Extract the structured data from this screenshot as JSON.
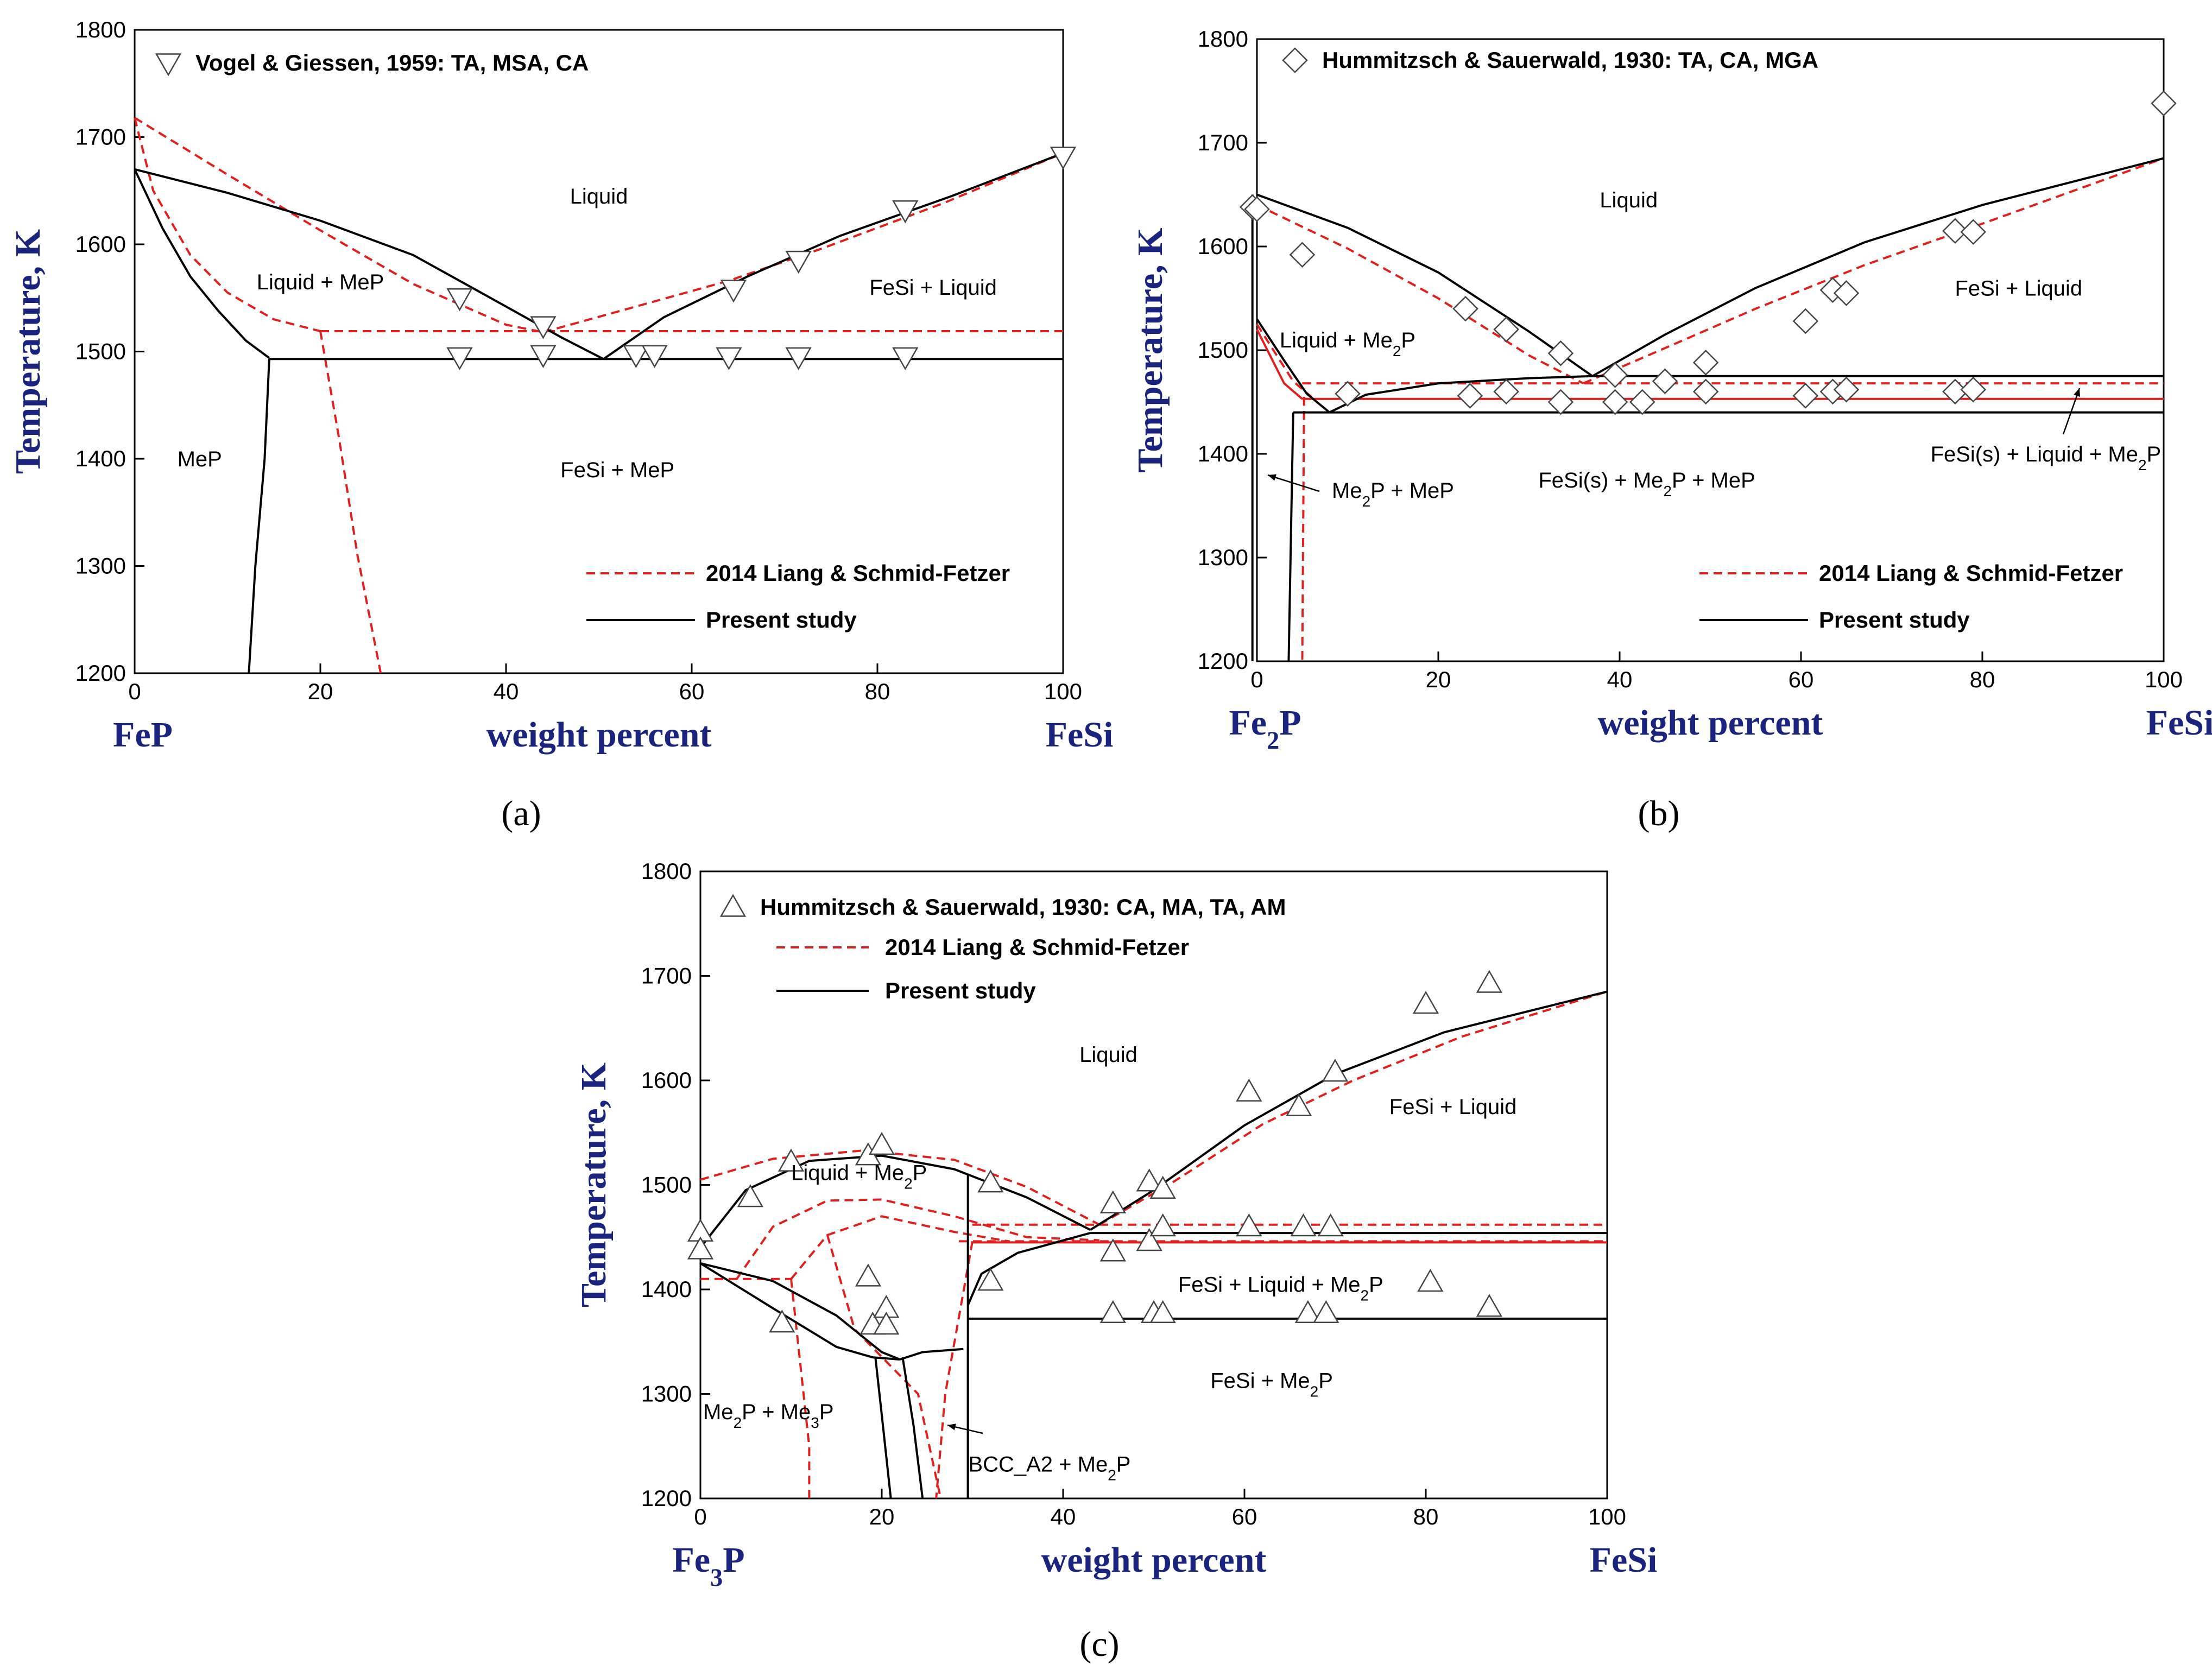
{
  "chart_data": [
    {
      "type": "scatter",
      "panel": "(a)",
      "xlabel": "weight percent",
      "ylabel": "Temperature, K",
      "xlim": [
        0,
        100
      ],
      "ylim": [
        1200,
        1800
      ],
      "xticks": [
        0,
        20,
        40,
        60,
        80,
        100
      ],
      "yticks": [
        1200,
        1300,
        1400,
        1500,
        1600,
        1700,
        1800
      ],
      "left_component": "FeP",
      "right_component": "FeSi",
      "legend": {
        "data": "Vogel & Giessen, 1959: TA, MSA, CA",
        "dashed": "2014 Liang & Schmid-Fetzer",
        "solid": "Present study"
      },
      "regions": [
        {
          "text": "Liquid",
          "x": 50,
          "y": 1645
        },
        {
          "text": "Liquid + MeP",
          "x": 20,
          "y": 1565
        },
        {
          "text": "FeSi + Liquid",
          "x": 86,
          "y": 1560
        },
        {
          "text": "MeP",
          "x": 7,
          "y": 1400
        },
        {
          "text": "FeSi + MeP",
          "x": 52,
          "y": 1390
        }
      ],
      "markers": "triangle-down",
      "points": [
        [
          35,
          1550
        ],
        [
          44,
          1524
        ],
        [
          54,
          1497
        ],
        [
          56,
          1497
        ],
        [
          64.5,
          1558
        ],
        [
          71.5,
          1585
        ],
        [
          83,
          1632
        ],
        [
          100,
          1682
        ],
        [
          35,
          1495
        ],
        [
          44,
          1497
        ],
        [
          64,
          1495
        ],
        [
          71.5,
          1495
        ],
        [
          83,
          1495
        ]
      ],
      "solid_lines": [
        [
          [
            0,
            1670
          ],
          [
            10,
            1648
          ],
          [
            20,
            1622
          ],
          [
            30,
            1590
          ],
          [
            40,
            1542
          ],
          [
            46,
            1513
          ],
          [
            50.5,
            1493
          ]
        ],
        [
          [
            50.5,
            1493
          ],
          [
            57,
            1532
          ],
          [
            66,
            1570
          ],
          [
            76,
            1608
          ],
          [
            88,
            1645
          ],
          [
            100,
            1685
          ]
        ],
        [
          [
            0,
            1670
          ],
          [
            3,
            1615
          ],
          [
            6,
            1570
          ],
          [
            9,
            1538
          ],
          [
            12,
            1510
          ],
          [
            14.5,
            1494
          ]
        ],
        [
          [
            14.5,
            1493
          ],
          [
            100,
            1493
          ]
        ],
        [
          [
            14.5,
            1493
          ],
          [
            14,
            1400
          ],
          [
            13,
            1300
          ],
          [
            12.3,
            1200
          ]
        ]
      ],
      "dashed_lines": [
        [
          [
            0,
            1718
          ],
          [
            10,
            1665
          ],
          [
            20,
            1613
          ],
          [
            30,
            1563
          ],
          [
            40,
            1525
          ],
          [
            44,
            1518
          ]
        ],
        [
          [
            44,
            1518
          ],
          [
            54,
            1542
          ],
          [
            64,
            1566
          ],
          [
            74,
            1596
          ],
          [
            87,
            1638
          ],
          [
            100,
            1685
          ]
        ],
        [
          [
            0,
            1718
          ],
          [
            2,
            1650
          ],
          [
            6,
            1590
          ],
          [
            10,
            1555
          ],
          [
            15,
            1530
          ],
          [
            20,
            1519
          ]
        ],
        [
          [
            20,
            1519
          ],
          [
            100,
            1519
          ]
        ],
        [
          [
            20,
            1519
          ],
          [
            22,
            1420
          ],
          [
            24,
            1310
          ],
          [
            26.5,
            1200
          ]
        ]
      ]
    },
    {
      "type": "scatter",
      "panel": "(b)",
      "xlabel": "weight percent",
      "ylabel": "Temperature, K",
      "xlim": [
        0,
        100
      ],
      "ylim": [
        1200,
        1800
      ],
      "xticks": [
        0,
        20,
        40,
        60,
        80,
        100
      ],
      "yticks": [
        1200,
        1300,
        1400,
        1500,
        1600,
        1700,
        1800
      ],
      "left_component": "Fe₂P",
      "right_component": "FeSi",
      "legend": {
        "data": "Hummitzsch & Sauerwald, 1930: TA, CA, MGA",
        "dashed": "2014 Liang & Schmid-Fetzer",
        "solid": "Present study"
      },
      "regions": [
        {
          "text": "Liquid",
          "x": 41,
          "y": 1645
        },
        {
          "text": "Liquid + Me₂P",
          "x": 10,
          "y": 1510
        },
        {
          "text": "FeSi + Liquid",
          "x": 84,
          "y": 1560
        },
        {
          "text": "FeSi(s) + Me₂P + MeP",
          "x": 43,
          "y": 1375
        },
        {
          "text": "FeSi(s) + Liquid + Me₂P",
          "x": 87,
          "y": 1400
        },
        {
          "text": "Me₂P + MeP",
          "x": 15,
          "y": 1365
        }
      ],
      "markers": "diamond",
      "points": [
        [
          -0.5,
          1638
        ],
        [
          0,
          1636
        ],
        [
          5,
          1592
        ],
        [
          23,
          1540
        ],
        [
          27.5,
          1520
        ],
        [
          33.5,
          1497
        ],
        [
          39.5,
          1476
        ],
        [
          49.5,
          1488
        ],
        [
          60.5,
          1528
        ],
        [
          63.5,
          1558
        ],
        [
          65,
          1555
        ],
        [
          77,
          1615
        ],
        [
          79,
          1614
        ],
        [
          100,
          1738
        ],
        [
          10,
          1458
        ],
        [
          23.5,
          1456
        ],
        [
          27.5,
          1460
        ],
        [
          33.5,
          1450
        ],
        [
          39.5,
          1450
        ],
        [
          42.5,
          1450
        ],
        [
          45,
          1470
        ],
        [
          49.5,
          1460
        ],
        [
          60.5,
          1456
        ],
        [
          63.5,
          1460
        ],
        [
          65,
          1462
        ],
        [
          77,
          1460
        ],
        [
          79,
          1462
        ]
      ],
      "solid_lines": [
        [
          [
            0,
            1650
          ],
          [
            10,
            1618
          ],
          [
            20,
            1575
          ],
          [
            30,
            1518
          ],
          [
            37,
            1475
          ]
        ],
        [
          [
            37,
            1475
          ],
          [
            45,
            1515
          ],
          [
            55,
            1560
          ],
          [
            67,
            1604
          ],
          [
            80,
            1640
          ],
          [
            100,
            1685
          ]
        ],
        [
          [
            0,
            1530
          ],
          [
            3,
            1490
          ],
          [
            5.5,
            1458
          ],
          [
            8,
            1440
          ]
        ],
        [
          [
            8,
            1440
          ],
          [
            12,
            1457
          ],
          [
            20,
            1468
          ],
          [
            30,
            1473
          ],
          [
            37,
            1475
          ]
        ],
        [
          [
            4,
            1440
          ],
          [
            100,
            1440
          ]
        ],
        [
          [
            37,
            1475
          ],
          [
            100,
            1475
          ]
        ],
        [
          [
            -0.5,
            1650
          ],
          [
            -0.5,
            1200
          ]
        ],
        [
          [
            4,
            1440
          ],
          [
            3.5,
            1200
          ]
        ]
      ],
      "dashed_lines": [
        [
          [
            0,
            1640
          ],
          [
            10,
            1598
          ],
          [
            20,
            1550
          ],
          [
            30,
            1495
          ],
          [
            36,
            1468
          ]
        ],
        [
          [
            36,
            1468
          ],
          [
            45,
            1502
          ],
          [
            55,
            1540
          ],
          [
            67,
            1582
          ],
          [
            80,
            1622
          ],
          [
            100,
            1685
          ]
        ],
        [
          [
            0,
            1525
          ],
          [
            4,
            1470
          ],
          [
            6,
            1455
          ]
        ],
        [
          [
            5,
            1468
          ],
          [
            100,
            1468
          ]
        ],
        [
          [
            5.2,
            1455
          ],
          [
            5,
            1200
          ]
        ]
      ],
      "red_solid_lines": [
        [
          [
            0,
            1520
          ],
          [
            3,
            1468
          ],
          [
            5,
            1453
          ]
        ],
        [
          [
            5,
            1453
          ],
          [
            100,
            1453
          ]
        ]
      ]
    },
    {
      "type": "scatter",
      "panel": "(c)",
      "xlabel": "weight percent",
      "ylabel": "Temperature, K",
      "xlim": [
        0,
        100
      ],
      "ylim": [
        1200,
        1800
      ],
      "xticks": [
        0,
        20,
        40,
        60,
        80,
        100
      ],
      "yticks": [
        1200,
        1300,
        1400,
        1500,
        1600,
        1700,
        1800
      ],
      "left_component": "Fe₃P",
      "right_component": "FeSi",
      "legend": {
        "data": "Hummitzsch & Sauerwald, 1930: CA, MA, TA, AM",
        "dashed": "2014 Liang & Schmid-Fetzer",
        "solid": "Present study"
      },
      "regions": [
        {
          "text": "Liquid",
          "x": 45,
          "y": 1625
        },
        {
          "text": "Liquid + Me₂P",
          "x": 17.5,
          "y": 1512
        },
        {
          "text": "FeSi + Liquid",
          "x": 83,
          "y": 1575
        },
        {
          "text": "FeSi + Liquid + Me₂P",
          "x": 64,
          "y": 1405
        },
        {
          "text": "FeSi + Me₂P",
          "x": 63,
          "y": 1313
        },
        {
          "text": "Me₂P + Me₃P",
          "x": 7.5,
          "y": 1283
        },
        {
          "text": "BCC_A2 + Me₂P",
          "x": 38.5,
          "y": 1233
        }
      ],
      "markers": "triangle-up",
      "points": [
        [
          0,
          1455
        ],
        [
          0,
          1438
        ],
        [
          5.5,
          1488
        ],
        [
          10,
          1522
        ],
        [
          18.5,
          1528
        ],
        [
          20,
          1538
        ],
        [
          32,
          1502
        ],
        [
          45.5,
          1482
        ],
        [
          49.5,
          1503
        ],
        [
          51,
          1496
        ],
        [
          60.5,
          1589
        ],
        [
          66,
          1575
        ],
        [
          70,
          1608
        ],
        [
          80,
          1673
        ],
        [
          87,
          1693
        ],
        [
          9,
          1368
        ],
        [
          18.5,
          1412
        ],
        [
          19,
          1366
        ],
        [
          20.5,
          1382
        ],
        [
          20.5,
          1366
        ],
        [
          32,
          1408
        ],
        [
          45.5,
          1436
        ],
        [
          49.5,
          1446
        ],
        [
          51,
          1460
        ],
        [
          60.5,
          1460
        ],
        [
          66.5,
          1460
        ],
        [
          69.5,
          1460
        ],
        [
          80.5,
          1407
        ],
        [
          87,
          1383
        ],
        [
          45.5,
          1377
        ],
        [
          50,
          1377
        ],
        [
          51,
          1377
        ],
        [
          67,
          1377
        ],
        [
          69,
          1377
        ]
      ],
      "solid_lines": [
        [
          [
            0,
            1440
          ],
          [
            5,
            1495
          ],
          [
            12,
            1523
          ],
          [
            20,
            1528
          ],
          [
            28,
            1515
          ],
          [
            36,
            1488
          ],
          [
            43,
            1457
          ]
        ],
        [
          [
            43,
            1457
          ],
          [
            50,
            1495
          ],
          [
            60,
            1557
          ],
          [
            70,
            1606
          ],
          [
            82,
            1646
          ],
          [
            100,
            1685
          ]
        ],
        [
          [
            0,
            1425
          ],
          [
            8,
            1382
          ],
          [
            15,
            1345
          ],
          [
            19,
            1335
          ],
          [
            22,
            1333
          ]
        ],
        [
          [
            0,
            1425
          ],
          [
            8,
            1408
          ],
          [
            15,
            1375
          ],
          [
            20,
            1340
          ],
          [
            22,
            1333
          ]
        ],
        [
          [
            22,
            1333
          ],
          [
            24.5,
            1340
          ],
          [
            29,
            1343
          ]
        ],
        [
          [
            29.5,
            1510
          ],
          [
            29.5,
            1200
          ]
        ],
        [
          [
            29.5,
            1385
          ],
          [
            31,
            1415
          ],
          [
            35,
            1435
          ],
          [
            43,
            1454
          ]
        ],
        [
          [
            43,
            1454
          ],
          [
            100,
            1454
          ]
        ],
        [
          [
            29.5,
            1372
          ],
          [
            100,
            1372
          ]
        ],
        [
          [
            19.3,
            1335
          ],
          [
            20,
            1280
          ],
          [
            21,
            1200
          ]
        ],
        [
          [
            22.3,
            1335
          ],
          [
            23.5,
            1270
          ],
          [
            24.5,
            1200
          ]
        ],
        [
          [
            29.5,
            1345
          ],
          [
            29.5,
            1200
          ]
        ]
      ],
      "dashed_lines": [
        [
          [
            0,
            1505
          ],
          [
            8,
            1525
          ],
          [
            18,
            1533
          ],
          [
            28,
            1524
          ],
          [
            36,
            1498
          ],
          [
            44,
            1462
          ]
        ],
        [
          [
            44,
            1462
          ],
          [
            52,
            1502
          ],
          [
            62,
            1558
          ],
          [
            72,
            1600
          ],
          [
            84,
            1642
          ],
          [
            100,
            1685
          ]
        ],
        [
          [
            0,
            1410
          ],
          [
            10,
            1410
          ]
        ],
        [
          [
            10,
            1410
          ],
          [
            12,
            1250
          ],
          [
            12,
            1200
          ]
        ],
        [
          [
            4,
            1410
          ],
          [
            8,
            1460
          ],
          [
            14,
            1485
          ],
          [
            20,
            1486
          ],
          [
            28,
            1470
          ],
          [
            36,
            1450
          ],
          [
            44,
            1447
          ]
        ],
        [
          [
            10,
            1410
          ],
          [
            14,
            1452
          ],
          [
            20,
            1470
          ],
          [
            28,
            1455
          ],
          [
            34,
            1446
          ]
        ],
        [
          [
            28.5,
            1446
          ],
          [
            100,
            1446
          ]
        ],
        [
          [
            30,
            1462
          ],
          [
            100,
            1462
          ]
        ],
        [
          [
            14,
            1452
          ],
          [
            17,
            1362
          ],
          [
            24,
            1300
          ],
          [
            26.5,
            1200
          ]
        ],
        [
          [
            30,
            1446
          ],
          [
            27,
            1300
          ],
          [
            26,
            1200
          ]
        ]
      ],
      "red_solid_lines": [
        [
          [
            30,
            1445
          ],
          [
            100,
            1445
          ]
        ]
      ]
    }
  ]
}
